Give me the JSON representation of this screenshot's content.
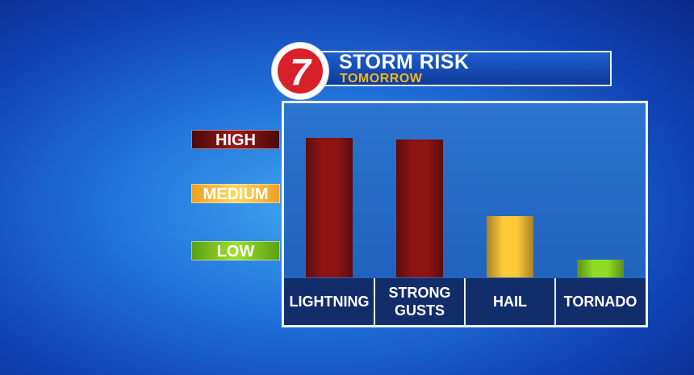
{
  "chart_data": {
    "type": "bar",
    "title": "STORM RISK",
    "subtitle": "TOMORROW",
    "logo": "7",
    "categories": [
      "LIGHTNING",
      "STRONG GUSTS",
      "HAIL",
      "TORNADO"
    ],
    "values": [
      100,
      99,
      44,
      13
    ],
    "colors": [
      "#8e1414",
      "#8e1414",
      "#ffc93a",
      "#8fdc22"
    ],
    "ylim": [
      0,
      100
    ],
    "yticks": [
      {
        "value": 99,
        "label": "HIGH"
      },
      {
        "value": 60,
        "label": "MEDIUM"
      },
      {
        "value": 19,
        "label": "LOW"
      }
    ]
  }
}
